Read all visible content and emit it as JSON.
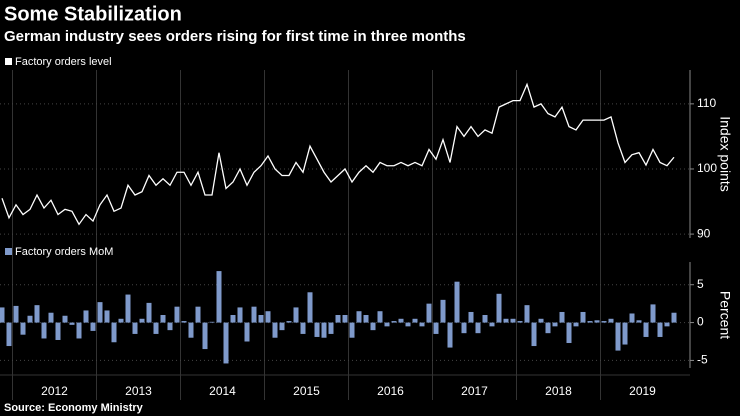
{
  "title": "Some Stabilization",
  "subtitle": "German industry sees orders rising for first time in three months",
  "source": "Source: Economy Ministry",
  "years": [
    "2012",
    "2013",
    "2014",
    "2015",
    "2016",
    "2017",
    "2018",
    "2019"
  ],
  "chart_data": [
    {
      "type": "line",
      "ylabel": "Index points",
      "ylim": [
        89.4,
        115.2
      ],
      "yticks": [
        90,
        100,
        110
      ],
      "grid": true,
      "series": [
        {
          "name": "Factory orders level",
          "color": "#ffffff",
          "values": [
            95.5,
            92.5,
            94.5,
            93,
            93.8,
            96,
            94,
            95.2,
            93,
            93.8,
            93.5,
            91.5,
            93,
            92,
            94.5,
            96,
            93.5,
            94,
            97.5,
            96,
            96.5,
            99,
            97.5,
            98.5,
            97.5,
            99.5,
            99.5,
            97.5,
            99.5,
            96,
            96,
            102.5,
            97,
            98,
            100,
            97.5,
            99.5,
            100.5,
            102,
            100,
            99,
            99,
            101,
            99.5,
            103.5,
            101.5,
            99.5,
            98,
            99,
            100,
            98,
            99.5,
            100.5,
            99.5,
            101,
            100.5,
            100.5,
            101,
            100.5,
            101,
            100.5,
            103,
            101.5,
            104.5,
            101,
            106.5,
            105,
            106.5,
            105,
            106,
            105.5,
            109.5,
            110,
            110.5,
            110.5,
            113,
            109.5,
            110,
            108.5,
            108,
            109.5,
            106.5,
            106,
            107.5,
            107.5,
            107.5,
            107.5,
            108,
            104,
            101,
            102.2,
            102.5,
            100.6,
            103,
            101,
            100.5,
            101.8
          ]
        }
      ]
    },
    {
      "type": "bar",
      "ylabel": "Percent",
      "ylim": [
        -6,
        8
      ],
      "yticks": [
        -5,
        0,
        5
      ],
      "grid": true,
      "series": [
        {
          "name": "Factory orders MoM",
          "color": "#7f9acb",
          "values": [
            2.0,
            -3.1,
            2.2,
            -1.6,
            0.9,
            2.3,
            -2.1,
            1.3,
            -2.3,
            0.9,
            -0.3,
            -2.1,
            1.6,
            -1.1,
            2.7,
            1.6,
            -2.6,
            0.5,
            3.7,
            -1.5,
            0.5,
            2.6,
            -1.5,
            1.0,
            -1.0,
            2.1,
            0.2,
            -2.0,
            2.1,
            -3.5,
            0.1,
            6.8,
            -5.4,
            1.0,
            2.0,
            -2.5,
            2.1,
            1.0,
            1.5,
            -2.0,
            -1.0,
            0.2,
            2.0,
            -1.5,
            4.0,
            -1.9,
            -2.0,
            -1.5,
            1.0,
            1.0,
            -2.0,
            1.5,
            1.0,
            -1.0,
            1.5,
            -0.5,
            0.2,
            0.5,
            -0.5,
            0.5,
            -0.5,
            2.5,
            -1.5,
            3.0,
            -3.3,
            5.4,
            -1.4,
            1.4,
            -1.4,
            1.0,
            -0.5,
            3.8,
            0.5,
            0.5,
            0.2,
            2.3,
            -3.1,
            0.5,
            -1.4,
            -0.5,
            1.4,
            -2.7,
            -0.5,
            1.4,
            0.2,
            0.3,
            0.2,
            0.5,
            -3.7,
            -2.9,
            1.2,
            0.3,
            -1.9,
            2.4,
            -1.9,
            -0.5,
            1.3
          ]
        }
      ]
    }
  ]
}
